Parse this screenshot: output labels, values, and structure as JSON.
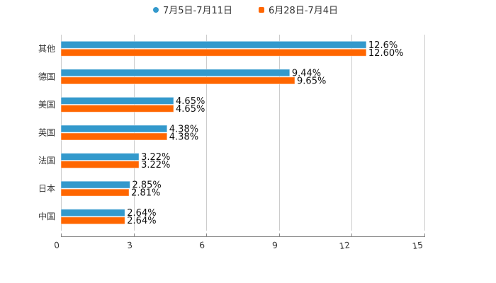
{
  "chart_data": {
    "type": "bar",
    "orientation": "horizontal",
    "title": "",
    "xlabel": "",
    "ylabel": "",
    "xlim": [
      0,
      15
    ],
    "xticks": [
      0,
      3,
      6,
      9,
      12,
      15
    ],
    "grid": true,
    "legend_position": "top",
    "categories": [
      "其他",
      "德国",
      "美国",
      "英国",
      "法国",
      "日本",
      "中国"
    ],
    "series": [
      {
        "name": "7月5日-7月11日",
        "color": "#3399CC",
        "marker": "circle",
        "values": [
          12.6,
          9.44,
          4.65,
          4.38,
          3.22,
          2.85,
          2.64
        ],
        "labels": [
          "12.6%",
          "9.44%",
          "4.65%",
          "4.38%",
          "3.22%",
          "2.85%",
          "2.64%"
        ]
      },
      {
        "name": "6月28日-7月4日",
        "color": "#FF6600",
        "marker": "square",
        "values": [
          12.6,
          9.65,
          4.65,
          4.38,
          3.22,
          2.81,
          2.64
        ],
        "labels": [
          "12.60%",
          "9.65%",
          "4.65%",
          "4.38%",
          "3.22%",
          "2.81%",
          "2.64%"
        ]
      }
    ]
  },
  "legend": {
    "items": [
      {
        "label": "7月5日-7月11日",
        "color": "#3399CC"
      },
      {
        "label": "6月28日-7月4日",
        "color": "#FF6600"
      }
    ]
  }
}
